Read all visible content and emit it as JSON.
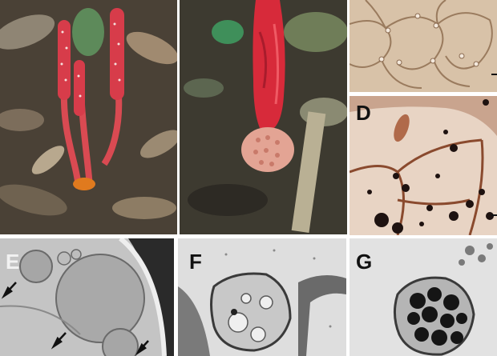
{
  "figure": {
    "panels": [
      {
        "id": "A",
        "label": "",
        "kind": "photo: red flowering spikes on leaf litter"
      },
      {
        "id": "B",
        "label": "",
        "kind": "photo: red bud with pinkish tuber on soil"
      },
      {
        "id": "C",
        "label": "",
        "kind": "micrograph: cell walls"
      },
      {
        "id": "D",
        "label": "D",
        "kind": "micrograph: stained cells with dark granules"
      },
      {
        "id": "E",
        "label": "E",
        "kind": "TEM: large round bodies with arrows"
      },
      {
        "id": "F",
        "label": "F",
        "kind": "TEM: membrane-bound vesicle"
      },
      {
        "id": "G",
        "label": "G",
        "kind": "TEM: vesicle containing dark granules"
      }
    ]
  }
}
